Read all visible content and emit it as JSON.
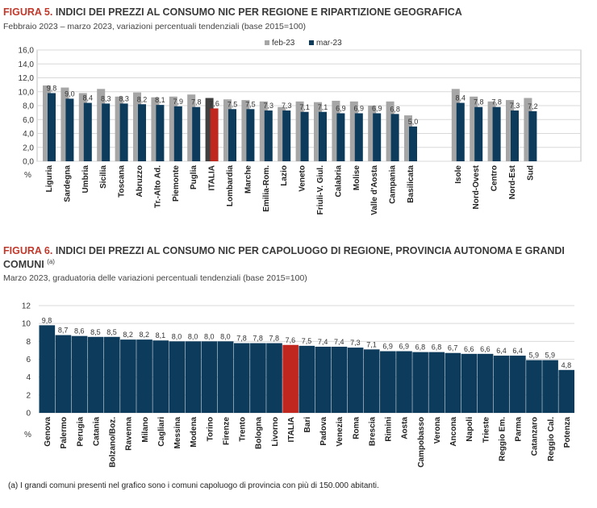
{
  "figure5": {
    "number": "FIGURA 5.",
    "title": "INDICI DEI PREZZI AL CONSUMO NIC PER REGIONE E RIPARTIZIONE GEOGRAFICA",
    "subtitle": "Febbraio 2023 – marzo 2023, variazioni percentuali tendenziali (base 2015=100)"
  },
  "figure6": {
    "number": "FIGURA 6.",
    "title_line1": "INDICI DEI PREZZI AL CONSUMO NIC PER CAPOLUOGO DI REGIONE, PROVINCIA AUTONOMA E GRANDI",
    "title_line2": "COMUNI",
    "title_sup": "(a)",
    "subtitle": "Marzo 2023, graduatoria delle variazioni percentuali tendenziali (base 2015=100)"
  },
  "footnote": "(a)  I grandi comuni presenti nel grafico sono i comuni capoluogo di provincia con più di 150.000 abitanti.",
  "colors": {
    "feb": "#a6a6a6",
    "mar": "#0d3b5c",
    "italia_feb": "#404040",
    "italia_mar": "#c0271f",
    "grid": "#d9d9d9"
  },
  "chart_data": [
    {
      "type": "bar",
      "title": "INDICI DEI PREZZI AL CONSUMO NIC PER REGIONE E RIPARTIZIONE GEOGRAFICA",
      "ylabel": "%",
      "ylim": [
        0,
        16
      ],
      "yticks": [
        "0,0",
        "2,0",
        "4,0",
        "6,0",
        "8,0",
        "10,0",
        "12,0",
        "14,0",
        "16,0"
      ],
      "grid": true,
      "legend_position": "top-center",
      "categories": [
        "Liguria",
        "Sardegna",
        "Umbria",
        "Sicilia",
        "Toscana",
        "Abruzzo",
        "Tr.-Alto Ad.",
        "Piemonte",
        "Puglia",
        "ITALIA",
        "Lombardia",
        "Marche",
        "Emilia-Rom.",
        "Lazio",
        "Veneto",
        "Friuli-V. Giul.",
        "Calabria",
        "Molise",
        "Valle d'Aosta",
        "Campania",
        "Basilicata",
        "Isole",
        "Nord-Ovest",
        "Centro",
        "Nord-Est",
        "Sud"
      ],
      "series": [
        {
          "name": "feb-23",
          "values": [
            10.9,
            10.6,
            9.8,
            10.4,
            9.3,
            9.9,
            9.2,
            9.3,
            9.6,
            9.1,
            8.9,
            8.8,
            8.6,
            7.8,
            8.6,
            8.5,
            8.7,
            8.6,
            8.0,
            8.6,
            6.6,
            10.4,
            9.3,
            8.6,
            8.8,
            9.1
          ]
        },
        {
          "name": "mar-23",
          "values": [
            9.8,
            9.0,
            8.4,
            8.3,
            8.3,
            8.2,
            8.1,
            7.9,
            7.8,
            7.6,
            7.5,
            7.5,
            7.3,
            7.3,
            7.1,
            7.1,
            6.9,
            6.9,
            6.9,
            6.8,
            5.0,
            8.4,
            7.8,
            7.8,
            7.3,
            7.2
          ],
          "labels": [
            "9,8",
            "9,0",
            "8,4",
            "8,3",
            "8,3",
            "8,2",
            "8,1",
            "7,9",
            "7,8",
            "7,6",
            "7,5",
            "7,5",
            "7,3",
            "7,3",
            "7,1",
            "7,1",
            "6,9",
            "6,9",
            "6,9",
            "6,8",
            "5,0",
            "8,4",
            "7,8",
            "7,8",
            "7,3",
            "7,2"
          ]
        }
      ]
    },
    {
      "type": "bar",
      "title": "INDICI DEI PREZZI AL CONSUMO NIC PER CAPOLUOGO DI REGIONE, PROVINCIA AUTONOMA E GRANDI COMUNI",
      "ylabel": "%",
      "ylim": [
        0,
        12
      ],
      "yticks": [
        "0",
        "2",
        "4",
        "6",
        "8",
        "10",
        "12"
      ],
      "grid": true,
      "categories": [
        "Genova",
        "Palermo",
        "Perugia",
        "Catania",
        "Bolzano/Boz.",
        "Ravenna",
        "Milano",
        "Cagliari",
        "Messina",
        "Modena",
        "Torino",
        "Firenze",
        "Trento",
        "Bologna",
        "Livorno",
        "ITALIA",
        "Bari",
        "Padova",
        "Venezia",
        "Roma",
        "Brescia",
        "Rimini",
        "Aosta",
        "Campobasso",
        "Verona",
        "Ancona",
        "Napoli",
        "Trieste",
        "Reggio Em.",
        "Parma",
        "Catanzaro",
        "Reggio Cal.",
        "Potenza"
      ],
      "values": [
        9.8,
        8.7,
        8.6,
        8.5,
        8.5,
        8.2,
        8.2,
        8.1,
        8.0,
        8.0,
        8.0,
        8.0,
        7.8,
        7.8,
        7.8,
        7.6,
        7.5,
        7.4,
        7.4,
        7.3,
        7.1,
        6.9,
        6.9,
        6.8,
        6.8,
        6.7,
        6.6,
        6.6,
        6.4,
        6.4,
        5.9,
        5.9,
        4.8
      ],
      "labels": [
        "9,8",
        "8,7",
        "8,6",
        "8,5",
        "8,5",
        "8,2",
        "8,2",
        "8,1",
        "8,0",
        "8,0",
        "8,0",
        "8,0",
        "7,8",
        "7,8",
        "7,8",
        "7,6",
        "7,5",
        "7,4",
        "7,4",
        "7,3",
        "7,1",
        "6,9",
        "6,9",
        "6,8",
        "6,8",
        "6,7",
        "6,6",
        "6,6",
        "6,4",
        "6,4",
        "5,9",
        "5,9",
        "4,8"
      ]
    }
  ]
}
